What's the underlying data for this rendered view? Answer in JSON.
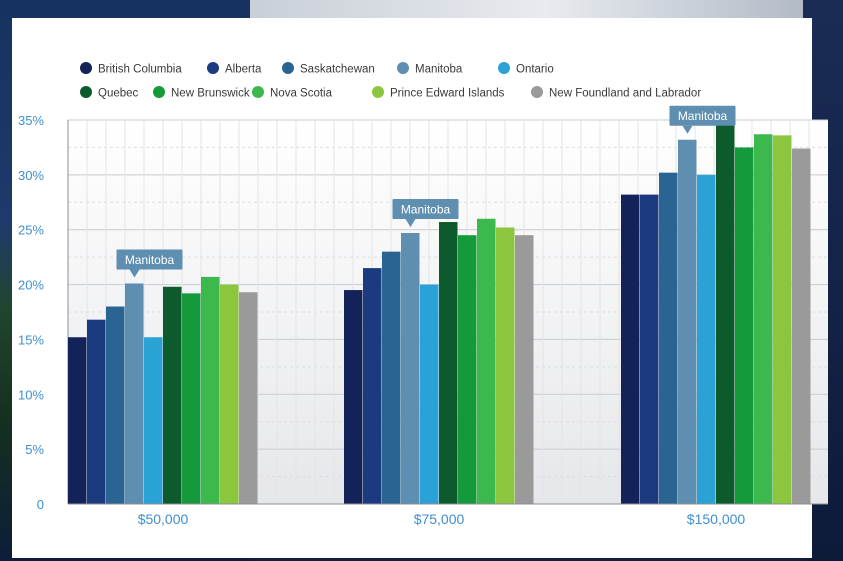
{
  "chart_data": {
    "type": "bar",
    "categories": [
      "$50,000",
      "$75,000",
      "$150,000"
    ],
    "ylim": [
      0,
      35
    ],
    "yticks": [
      "0",
      "5%",
      "10%",
      "15%",
      "20%",
      "25%",
      "30%",
      "35%"
    ],
    "grid": true,
    "legend_position": "top-left",
    "series": [
      {
        "name": "British Columbia",
        "color": "#13235a",
        "values": [
          15.2,
          19.5,
          28.2
        ]
      },
      {
        "name": "Alberta",
        "color": "#1c3a80",
        "values": [
          16.8,
          21.5,
          28.2
        ]
      },
      {
        "name": "Saskatchewan",
        "color": "#2a6493",
        "values": [
          18.0,
          23.0,
          30.2
        ]
      },
      {
        "name": "Manitoba",
        "color": "#5e8eb0",
        "values": [
          20.1,
          24.7,
          33.2
        ]
      },
      {
        "name": "Ontario",
        "color": "#2aa2d6",
        "values": [
          15.2,
          20.0,
          30.0
        ]
      },
      {
        "name": "Quebec",
        "color": "#0d5a2c",
        "values": [
          19.8,
          25.7,
          34.7
        ]
      },
      {
        "name": "New Brunswick",
        "color": "#159a3b",
        "values": [
          19.2,
          24.5,
          32.5
        ]
      },
      {
        "name": "Nova Scotia",
        "color": "#3cb84c",
        "values": [
          20.7,
          26.0,
          33.7
        ]
      },
      {
        "name": "Prince Edward Islands",
        "color": "#8cc63e",
        "values": [
          20.0,
          25.2,
          33.6
        ]
      },
      {
        "name": "New Foundland and Labrador",
        "color": "#9a9a9a",
        "values": [
          19.3,
          24.5,
          32.4
        ]
      }
    ],
    "annotations": [
      {
        "text": "Manitoba",
        "series": "Manitoba",
        "category": "$50,000"
      },
      {
        "text": "Manitoba",
        "series": "Manitoba",
        "category": "$75,000"
      },
      {
        "text": "Manitoba",
        "series": "Manitoba",
        "category": "$150,000"
      }
    ]
  }
}
